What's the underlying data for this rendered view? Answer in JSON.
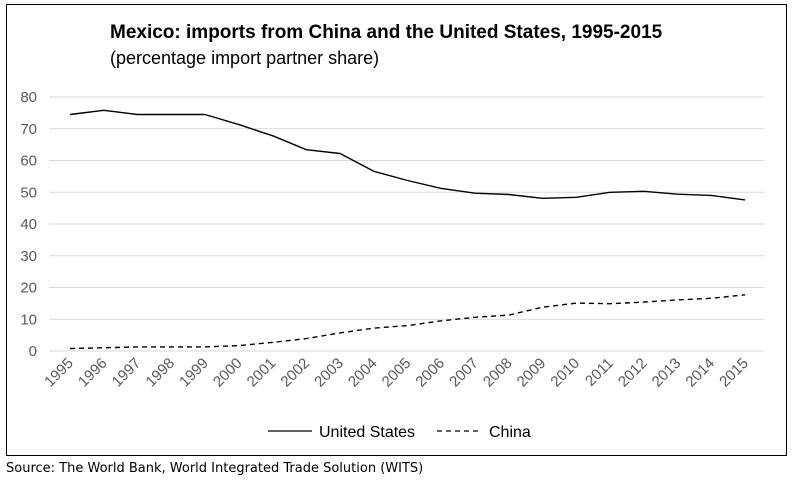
{
  "chart_data": {
    "type": "line",
    "title": "Mexico: imports from China and the United States, 1995-2015",
    "subtitle": "(percentage import partner share)",
    "xlabel": "",
    "ylabel": "",
    "x": [
      "1995",
      "1996",
      "1997",
      "1998",
      "1999",
      "2000",
      "2001",
      "2002",
      "2003",
      "2004",
      "2005",
      "2006",
      "2007",
      "2008",
      "2009",
      "2010",
      "2011",
      "2012",
      "2013",
      "2014",
      "2015"
    ],
    "ylim": [
      0,
      80
    ],
    "yticks": [
      0,
      10,
      20,
      30,
      40,
      50,
      60,
      70,
      80
    ],
    "grid": "horizontal",
    "legend": "bottom",
    "series": [
      {
        "name": "United States",
        "style": "solid",
        "color": "#000000",
        "values": [
          74.5,
          75.8,
          74.5,
          74.5,
          74.5,
          71.3,
          67.8,
          63.4,
          62.2,
          56.6,
          53.7,
          51.2,
          49.7,
          49.3,
          48.1,
          48.4,
          50.0,
          50.3,
          49.4,
          49.0,
          47.6
        ]
      },
      {
        "name": "China",
        "style": "dashed",
        "color": "#000000",
        "values": [
          0.8,
          1.0,
          1.3,
          1.3,
          1.3,
          1.7,
          2.7,
          3.9,
          5.7,
          7.2,
          8.0,
          9.5,
          10.6,
          11.3,
          13.8,
          15.1,
          14.9,
          15.4,
          16.1,
          16.6,
          17.7
        ]
      }
    ]
  },
  "source": "Source: The World Bank, World Integrated Trade Solution (WITS)"
}
